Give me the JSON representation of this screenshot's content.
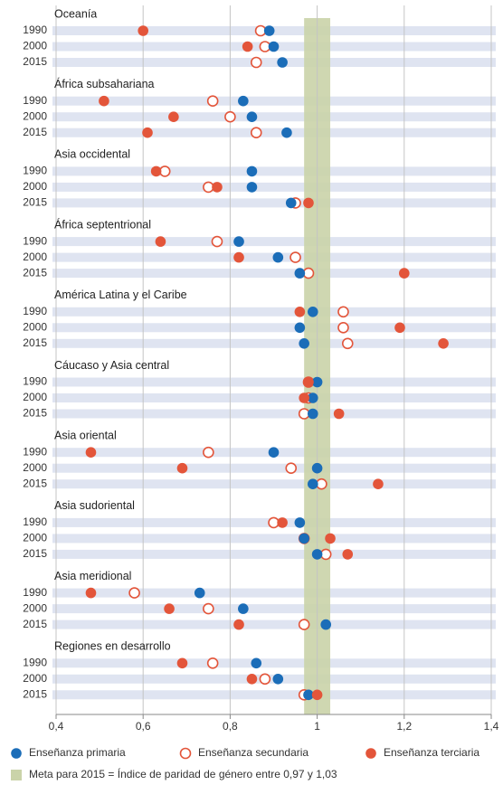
{
  "chart_data": {
    "type": "dot",
    "categories": [
      "Oceanía",
      "África subsahariana",
      "Asia occidental",
      "África septentrional",
      "América Latina y el Caribe",
      "Cáucaso y Asia central",
      "Asia oriental",
      "Asia sudoriental",
      "Asia meridional",
      "Regiones en desarrollo"
    ],
    "years": [
      "1990",
      "2000",
      "2015"
    ],
    "series": [
      {
        "name": "Enseñanza primaria",
        "color": "#1b6db8",
        "filled": true,
        "values": [
          [
            0.89,
            0.9,
            0.92
          ],
          [
            0.83,
            0.85,
            0.93
          ],
          [
            0.85,
            0.85,
            0.94
          ],
          [
            0.82,
            0.91,
            0.96
          ],
          [
            0.99,
            0.96,
            0.97
          ],
          [
            1.0,
            0.99,
            0.99
          ],
          [
            0.9,
            1.0,
            0.99
          ],
          [
            0.96,
            0.97,
            1.0
          ],
          [
            0.73,
            0.83,
            1.02
          ],
          [
            0.86,
            0.91,
            0.98
          ]
        ]
      },
      {
        "name": "Enseñanza secundaria",
        "color": "#e3553a",
        "filled": false,
        "values": [
          [
            0.87,
            0.88,
            0.86
          ],
          [
            0.76,
            0.8,
            0.86
          ],
          [
            0.65,
            0.75,
            0.95
          ],
          [
            0.77,
            0.95,
            0.98
          ],
          [
            1.06,
            1.06,
            1.07
          ],
          [
            0.98,
            0.98,
            0.97
          ],
          [
            0.75,
            0.94,
            1.01
          ],
          [
            0.9,
            0.97,
            1.02
          ],
          [
            0.58,
            0.75,
            0.97
          ],
          [
            0.76,
            0.88,
            0.97
          ]
        ]
      },
      {
        "name": "Enseñanza terciaria",
        "color": "#e3553a",
        "filled": true,
        "values": [
          [
            0.6,
            0.84,
            null
          ],
          [
            0.51,
            0.67,
            0.61
          ],
          [
            0.63,
            0.77,
            0.98
          ],
          [
            0.64,
            0.82,
            1.2
          ],
          [
            0.96,
            1.19,
            1.29
          ],
          [
            0.98,
            0.97,
            1.05
          ],
          [
            0.48,
            0.69,
            1.14
          ],
          [
            0.92,
            1.03,
            1.07
          ],
          [
            0.48,
            0.66,
            0.82
          ],
          [
            0.69,
            0.85,
            1.0
          ]
        ]
      }
    ],
    "xlim": [
      0.4,
      1.4
    ],
    "xticks": [
      {
        "value": 0.4,
        "label": "0,4"
      },
      {
        "value": 0.6,
        "label": "0,6"
      },
      {
        "value": 0.8,
        "label": "0,8"
      },
      1,
      {
        "value": 1.2,
        "label": "1,2"
      },
      {
        "value": 1.4,
        "label": "1,4"
      }
    ],
    "target_band": {
      "range": [
        0.97,
        1.03
      ],
      "color": "#cad3a9",
      "label": "Meta para 2015 = Índice de paridad de género entre 0,97 y 1,03"
    },
    "grid": true
  }
}
